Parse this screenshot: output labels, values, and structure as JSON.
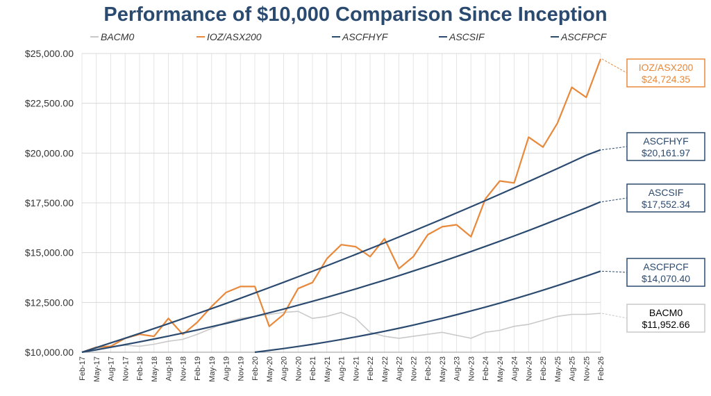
{
  "chart_data": {
    "type": "line",
    "title": "Performance of $10,000 Comparison Since Inception",
    "categories": [
      "Feb-17",
      "May-17",
      "Aug-17",
      "Nov-17",
      "Feb-18",
      "May-18",
      "Aug-18",
      "Nov-18",
      "Feb-19",
      "May-19",
      "Aug-19",
      "Nov-19",
      "Feb-20",
      "May-20",
      "Aug-20",
      "Nov-20",
      "Feb-21",
      "May-21",
      "Aug-21",
      "Nov-21",
      "Feb-22",
      "May-22",
      "Aug-22",
      "Nov-22",
      "Feb-23",
      "May-23",
      "Aug-23",
      "Nov-23",
      "Feb-24",
      "May-24",
      "Aug-24",
      "Nov-24",
      "Feb-25",
      "May-25",
      "Aug-25",
      "Nov-25",
      "Feb-26"
    ],
    "series": [
      {
        "name": "BACM0",
        "color": "#c9c9c9",
        "values": [
          10000,
          10200,
          10300,
          10350,
          10300,
          10400,
          10550,
          10650,
          10900,
          11200,
          11500,
          11700,
          11800,
          11900,
          12000,
          12050,
          11700,
          11800,
          12000,
          11700,
          11000,
          10800,
          10700,
          10800,
          10900,
          11000,
          10850,
          10700,
          11000,
          11100,
          11300,
          11400,
          11600,
          11800,
          11900,
          11900,
          11952.66
        ],
        "value_labels": [
          null,
          null,
          null,
          null,
          null,
          null,
          null,
          null,
          null,
          null,
          null,
          null,
          null,
          null,
          null,
          null,
          null,
          null,
          null,
          null,
          null,
          null,
          null,
          null,
          null,
          null,
          null,
          null,
          null,
          null,
          null,
          null,
          null,
          null,
          null,
          null,
          "$11,952.66"
        ]
      },
      {
        "name": "IOZ/ASX200",
        "color": "#e8883a",
        "values": [
          10000,
          10250,
          10300,
          10700,
          10900,
          10800,
          11700,
          10900,
          11500,
          12300,
          13000,
          13300,
          13300,
          11300,
          11900,
          13200,
          13500,
          14700,
          15400,
          15300,
          14800,
          15700,
          14200,
          14800,
          15900,
          16300,
          16400,
          15800,
          17700,
          18600,
          18500,
          20800,
          20300,
          21500,
          23300,
          22800,
          24724.35
        ],
        "value_labels": [
          null,
          null,
          null,
          null,
          null,
          null,
          null,
          null,
          null,
          null,
          null,
          null,
          null,
          null,
          null,
          null,
          null,
          null,
          null,
          null,
          null,
          null,
          null,
          null,
          null,
          null,
          null,
          null,
          null,
          null,
          null,
          null,
          null,
          null,
          null,
          null,
          "$24,724.35"
        ]
      },
      {
        "name": "ASCFHYF",
        "color": "#2b4a6f",
        "values": [
          10000,
          10232,
          10466,
          10704,
          10944,
          11188,
          11434,
          11684,
          11936,
          12192,
          12450,
          12712,
          12976,
          13244,
          13514,
          13788,
          14064,
          14344,
          14626,
          14912,
          15200,
          15492,
          15786,
          16084,
          16384,
          16688,
          16994,
          17304,
          17616,
          17932,
          18250,
          18572,
          18896,
          19224,
          19554,
          19888,
          20161.97
        ],
        "value_labels": [
          null,
          null,
          null,
          null,
          null,
          null,
          null,
          null,
          null,
          null,
          null,
          null,
          null,
          null,
          null,
          null,
          null,
          null,
          null,
          null,
          null,
          null,
          null,
          null,
          null,
          null,
          null,
          null,
          null,
          null,
          null,
          null,
          null,
          null,
          null,
          null,
          "$20,161.97"
        ]
      },
      {
        "name": "ASCSIF",
        "color": "#2b4a6f",
        "values": [
          10000,
          10122,
          10250,
          10382,
          10520,
          10662,
          10810,
          10962,
          11119,
          11282,
          11449,
          11621,
          11799,
          11981,
          12168,
          12360,
          12557,
          12760,
          12967,
          13179,
          13396,
          13618,
          13845,
          14077,
          14314,
          14556,
          14803,
          15055,
          15312,
          15574,
          15841,
          16113,
          16390,
          16672,
          16958,
          17250,
          17552.34
        ],
        "value_labels": [
          null,
          null,
          null,
          null,
          null,
          null,
          null,
          null,
          null,
          null,
          null,
          null,
          null,
          null,
          null,
          null,
          null,
          null,
          null,
          null,
          null,
          null,
          null,
          null,
          null,
          null,
          null,
          null,
          null,
          null,
          null,
          null,
          null,
          null,
          null,
          null,
          "$17,552.34"
        ]
      },
      {
        "name": "ASCFPCF",
        "color": "#2b4a6f",
        "values": [
          null,
          null,
          null,
          null,
          null,
          null,
          null,
          null,
          null,
          null,
          null,
          null,
          10000,
          10089,
          10185,
          10288,
          10398,
          10515,
          10639,
          10770,
          10908,
          11053,
          11205,
          11364,
          11530,
          11703,
          11884,
          12071,
          12265,
          12467,
          12675,
          12891,
          13114,
          13344,
          13581,
          13825,
          14070.4
        ],
        "value_labels": [
          null,
          null,
          null,
          null,
          null,
          null,
          null,
          null,
          null,
          null,
          null,
          null,
          null,
          null,
          null,
          null,
          null,
          null,
          null,
          null,
          null,
          null,
          null,
          null,
          null,
          null,
          null,
          null,
          null,
          null,
          null,
          null,
          null,
          null,
          null,
          null,
          "$14,070.40"
        ]
      }
    ],
    "ylim": [
      10000,
      25000
    ],
    "yticks": [
      {
        "value": 10000,
        "label": "$10,000.00"
      },
      {
        "value": 12500,
        "label": "$12,500.00"
      },
      {
        "value": 15000,
        "label": "$15,000.00"
      },
      {
        "value": 17500,
        "label": "$17,500.00"
      },
      {
        "value": 20000,
        "label": "$20,000.00"
      },
      {
        "value": 22500,
        "label": "$22,500.00"
      },
      {
        "value": 25000,
        "label": "$25,000.00"
      }
    ],
    "grid": true
  }
}
